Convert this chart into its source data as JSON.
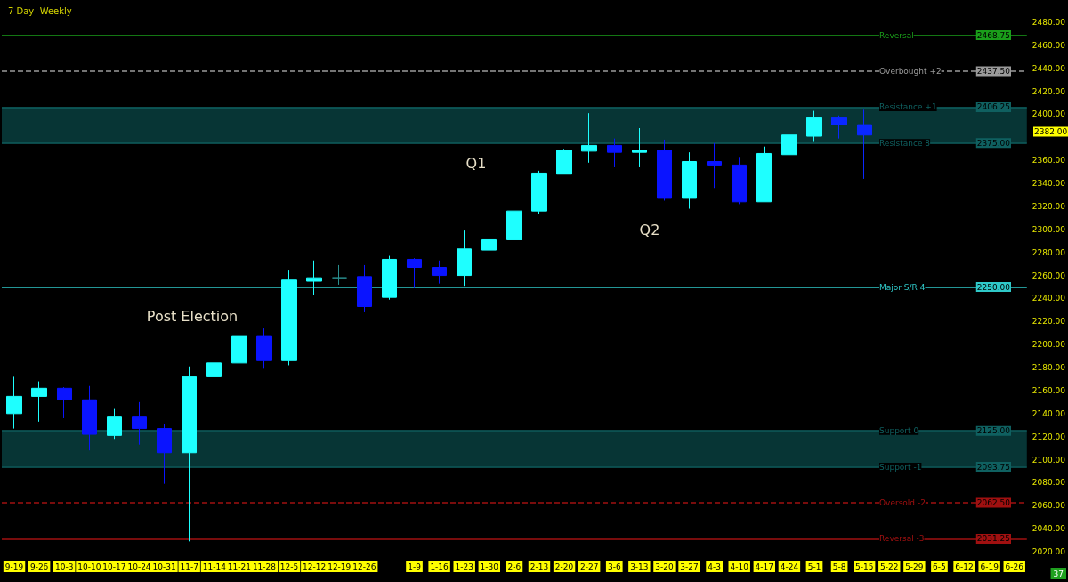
{
  "chart_data": {
    "type": "candlestick",
    "title": "7 Day  Weekly",
    "categories": [
      "9-19",
      "9-26",
      "10-3",
      "10-10",
      "10-17",
      "10-24",
      "10-31",
      "11-7",
      "11-14",
      "11-21",
      "11-28",
      "12-5",
      "12-12",
      "12-19",
      "12-26",
      null,
      "1-9",
      "1-16",
      "1-23",
      "1-30",
      "2-6",
      "2-13",
      "2-20",
      "2-27",
      "3-6",
      "3-13",
      "3-20",
      "3-27",
      "4-3",
      "4-10",
      "4-17",
      "4-24",
      "5-1",
      "5-8",
      "5-15",
      "5-22",
      "5-29",
      "6-5",
      "6-12",
      "6-19",
      "6-26"
    ],
    "ohlc": [
      [
        2140,
        2172,
        2127,
        2155
      ],
      [
        2155,
        2168,
        2133,
        2162
      ],
      [
        2162,
        2163,
        2136,
        2152
      ],
      [
        2152,
        2164,
        2108,
        2122
      ],
      [
        2121,
        2144,
        2118,
        2137
      ],
      [
        2137,
        2150,
        2113,
        2127
      ],
      [
        2127,
        2131,
        2079,
        2106
      ],
      [
        2106,
        2181,
        2029,
        2172
      ],
      [
        2172,
        2187,
        2152,
        2184
      ],
      [
        2184,
        2212,
        2180,
        2207
      ],
      [
        2207,
        2214,
        2179,
        2186
      ],
      [
        2186,
        2265,
        2182,
        2256
      ],
      [
        2255,
        2273,
        2243,
        2258
      ],
      [
        2258,
        2269,
        2252,
        2258
      ],
      [
        2259,
        2269,
        2228,
        2233
      ],
      [
        2241,
        2277,
        2239,
        2274
      ],
      [
        2274,
        2275,
        2249,
        2267
      ],
      [
        2267,
        2273,
        2253,
        2260
      ],
      [
        2260,
        2299,
        2251,
        2283
      ],
      [
        2282,
        2294,
        2262,
        2291
      ],
      [
        2291,
        2318,
        2281,
        2316
      ],
      [
        2316,
        2351,
        2313,
        2349
      ],
      [
        2348,
        2370,
        2348,
        2369
      ],
      [
        2368,
        2401,
        2358,
        2373
      ],
      [
        2373,
        2379,
        2354,
        2367
      ],
      [
        2367,
        2388,
        2354,
        2369
      ],
      [
        2369,
        2378,
        2325,
        2327
      ],
      [
        2327,
        2367,
        2318,
        2359
      ],
      [
        2359,
        2375,
        2336,
        2356
      ],
      [
        2356,
        2363,
        2322,
        2324
      ],
      [
        2324,
        2372,
        2324,
        2366
      ],
      [
        2365,
        2395,
        2365,
        2382
      ],
      [
        2381,
        2403,
        2376,
        2397
      ],
      [
        2397,
        2399,
        2379,
        2391
      ],
      [
        2391,
        2404,
        2344,
        2382
      ],
      null,
      null,
      null,
      null,
      null,
      null
    ],
    "colors": [
      "#1effff",
      "#1effff",
      "#0a14ff",
      "#0a14ff",
      "#1effff",
      "#0a14ff",
      "#0a14ff",
      "#1effff",
      "#1effff",
      "#1effff",
      "#0a14ff",
      "#1effff",
      "#1effff",
      "#2a8f8f",
      "#0a14ff",
      "#1effff",
      "#0a14ff",
      "#0a14ff",
      "#1effff",
      "#1effff",
      "#1effff",
      "#1effff",
      "#1effff",
      "#1effff",
      "#0a14ff",
      "#1effff",
      "#0a14ff",
      "#1effff",
      "#0a14ff",
      "#0a14ff",
      "#1effff",
      "#1effff",
      "#1effff",
      "#0a28ff",
      "#0a28ff",
      null,
      null,
      null,
      null,
      null,
      null
    ],
    "ylim": [
      2020,
      2480
    ],
    "yticks": [
      {
        "value": 2020,
        "label": "2020.00"
      },
      {
        "value": 2040,
        "label": "2040.00"
      },
      {
        "value": 2060,
        "label": "2060.00"
      },
      {
        "value": 2080,
        "label": "2080.00"
      },
      {
        "value": 2100,
        "label": "2100.00"
      },
      {
        "value": 2120,
        "label": "2120.00"
      },
      {
        "value": 2140,
        "label": "2140.00"
      },
      {
        "value": 2160,
        "label": "2160.00"
      },
      {
        "value": 2180,
        "label": "2180.00"
      },
      {
        "value": 2200,
        "label": "2200.00"
      },
      {
        "value": 2220,
        "label": "2220.00"
      },
      {
        "value": 2240,
        "label": "2240.00"
      },
      {
        "value": 2260,
        "label": "2260.00"
      },
      {
        "value": 2280,
        "label": "2280.00"
      },
      {
        "value": 2300,
        "label": "2300.00"
      },
      {
        "value": 2320,
        "label": "2320.00"
      },
      {
        "value": 2340,
        "label": "2340.00"
      },
      {
        "value": 2360,
        "label": "2360.00"
      },
      {
        "value": 2400,
        "label": "2400.00"
      },
      {
        "value": 2420,
        "label": "2420.00"
      },
      {
        "value": 2440,
        "label": "2440.00"
      },
      {
        "value": 2460,
        "label": "2460.00"
      },
      {
        "value": 2480,
        "label": "2480.00"
      }
    ],
    "grid": false,
    "bands": [
      {
        "axis": "y",
        "from": 2375,
        "to": 2406.25,
        "color": "#073535"
      },
      {
        "axis": "y",
        "from": 2093.75,
        "to": 2125,
        "color": "#073535"
      }
    ],
    "ref_lines": [
      {
        "axis": "y",
        "value": 2468.75,
        "label": "Reversal",
        "color": "#1a9e1a",
        "line_style": "solid"
      },
      {
        "axis": "y",
        "value": 2437.5,
        "label": "Overbought +2",
        "color": "#9a9a9a",
        "line_style": "dashed"
      },
      {
        "axis": "y",
        "value": 2406.25,
        "label": "Resistance +1",
        "color": "#0f6060",
        "line_style": "solid"
      },
      {
        "axis": "y",
        "value": 2375,
        "label": "Resistance 8",
        "color": "#0f6060",
        "line_style": "solid"
      },
      {
        "axis": "y",
        "value": 2250,
        "label": "Major S/R 4",
        "color": "#2fc8c8",
        "line_style": "solid"
      },
      {
        "axis": "y",
        "value": 2125,
        "label": "Support 0",
        "color": "#0f6060",
        "line_style": "solid"
      },
      {
        "axis": "y",
        "value": 2093.75,
        "label": "Support -1",
        "color": "#0f6060",
        "line_style": "solid"
      },
      {
        "axis": "y",
        "value": 2062.5,
        "label": "Oversold -2",
        "color": "#a01010",
        "line_style": "dashed"
      },
      {
        "axis": "y",
        "value": 2031.25,
        "label": "Reversal -3",
        "color": "#a01010",
        "line_style": "solid"
      }
    ],
    "annotations": [
      "Post Election",
      "Q1",
      "Q2",
      "2382.00",
      "37",
      {
        "text": "2468.75",
        "y": 2468.75
      },
      {
        "text": "2437.50",
        "y": 2437.5
      },
      {
        "text": "2406.25",
        "y": 2406.25
      },
      {
        "text": "2375.00",
        "y": 2375
      },
      {
        "text": "2250.00",
        "y": 2250
      },
      {
        "text": "2125.00",
        "y": 2125
      },
      {
        "text": "2093.75",
        "y": 2093.75
      },
      {
        "text": "2062.50",
        "y": 2062.5
      },
      {
        "text": "2031.25",
        "y": 2031.25
      }
    ]
  }
}
